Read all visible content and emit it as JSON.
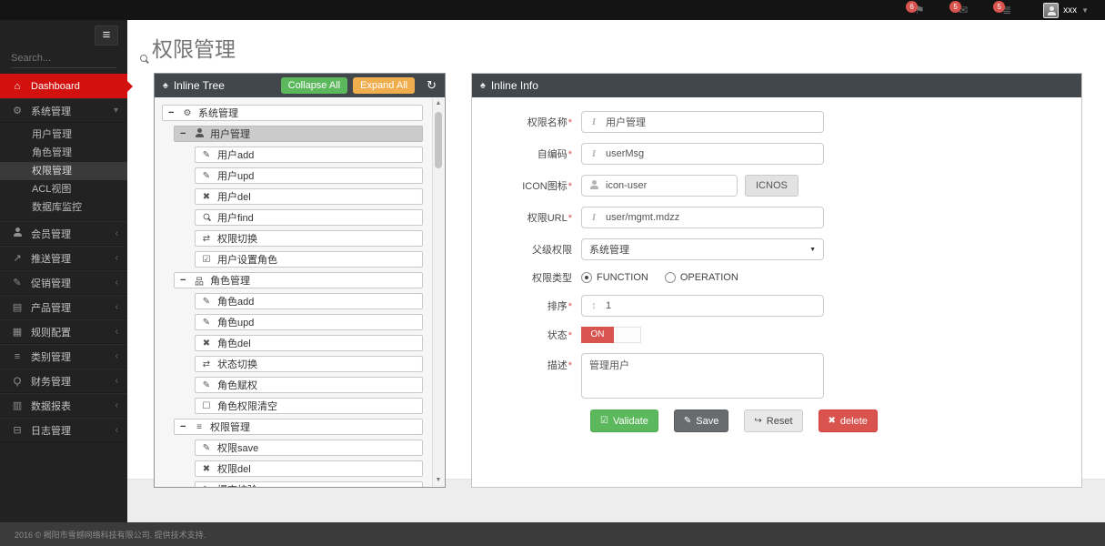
{
  "topbar": {
    "badges": [
      {
        "icon": "flag",
        "count": "6"
      },
      {
        "icon": "envelope",
        "count": "5"
      },
      {
        "icon": "tasks",
        "count": "5"
      }
    ],
    "user": {
      "name": "xxx",
      "avatar_icon": "person"
    }
  },
  "sidebar": {
    "menu_toggle_icon": "hamburger",
    "search_placeholder": "Search...",
    "dashboard": {
      "label": "Dashboard",
      "icon": "home",
      "active": true
    },
    "sections": [
      {
        "label": "系统管理",
        "icon": "cogs",
        "expanded": true,
        "children": [
          {
            "label": "用户管理"
          },
          {
            "label": "角色管理"
          },
          {
            "label": "权限管理",
            "active": true
          },
          {
            "label": "ACL视图"
          },
          {
            "label": "数据库监控"
          }
        ]
      },
      {
        "label": "会员管理",
        "icon": "user"
      },
      {
        "label": "推送管理",
        "icon": "share"
      },
      {
        "label": "促销管理",
        "icon": "pencil"
      },
      {
        "label": "产品管理",
        "icon": "book"
      },
      {
        "label": "规则配置",
        "icon": "newspaper"
      },
      {
        "label": "类别管理",
        "icon": "list"
      },
      {
        "label": "财务管理",
        "icon": "key"
      },
      {
        "label": "数据报表",
        "icon": "chart"
      },
      {
        "label": "日志管理",
        "icon": "hdd"
      }
    ]
  },
  "page": {
    "title": "权限管理"
  },
  "tree_panel": {
    "title": "Inline Tree",
    "title_icon": "tree",
    "collapse_all": "Collapse All",
    "expand_all": "Expand All",
    "refresh_icon": "refresh",
    "nodes": [
      {
        "label": "系统管理",
        "icon": "cogs",
        "level": 0,
        "expandable": true
      },
      {
        "label": "用户管理",
        "icon": "user",
        "level": 1,
        "expandable": true,
        "selected": true
      },
      {
        "label": "用户add",
        "icon": "pencil",
        "level": 2
      },
      {
        "label": "用户upd",
        "icon": "edit",
        "level": 2
      },
      {
        "label": "用户del",
        "icon": "x",
        "level": 2
      },
      {
        "label": "用户find",
        "icon": "search",
        "level": 2
      },
      {
        "label": "权限切换",
        "icon": "retweet",
        "level": 2
      },
      {
        "label": "用户设置角色",
        "icon": "check-square",
        "level": 2
      },
      {
        "label": "角色管理",
        "icon": "sitemap",
        "level": 1,
        "expandable": true
      },
      {
        "label": "角色add",
        "icon": "pencil",
        "level": 2
      },
      {
        "label": "角色upd",
        "icon": "edit",
        "level": 2
      },
      {
        "label": "角色del",
        "icon": "x",
        "level": 2
      },
      {
        "label": "状态切换",
        "icon": "retweet",
        "level": 2
      },
      {
        "label": "角色赋权",
        "icon": "pencil",
        "level": 2
      },
      {
        "label": "角色权限清空",
        "icon": "square",
        "level": 2
      },
      {
        "label": "权限管理",
        "icon": "list",
        "level": 1,
        "expandable": true
      },
      {
        "label": "权限save",
        "icon": "pencil",
        "level": 2
      },
      {
        "label": "权限del",
        "icon": "x",
        "level": 2
      },
      {
        "label": "提交校验",
        "icon": "edit",
        "level": 2
      }
    ]
  },
  "info_panel": {
    "title": "Inline Info",
    "title_icon": "tree",
    "fields": {
      "name": {
        "label": "权限名称",
        "required": "*",
        "value": "用户管理",
        "prefix_icon": "italic-i"
      },
      "code": {
        "label": "自编码",
        "required": "*",
        "value": "userMsg",
        "prefix_icon": "italic-i"
      },
      "icon": {
        "label": "ICON图标",
        "required": "*",
        "value": "icon-user",
        "prefix_icon": "person",
        "button_label": "ICNOS"
      },
      "url": {
        "label": "权限URL",
        "required": "*",
        "value": "user/mgmt.mdzz",
        "prefix_icon": "italic-i"
      },
      "parent": {
        "label": "父级权限",
        "value": "系统管理"
      },
      "type": {
        "label": "权限类型",
        "options": [
          "FUNCTION",
          "OPERATION"
        ],
        "selected": "FUNCTION"
      },
      "sort": {
        "label": "排序",
        "required": "*",
        "value": "1",
        "prefix_icon": "sort"
      },
      "status": {
        "label": "状态",
        "required": "*",
        "value": "ON"
      },
      "desc": {
        "label": "描述",
        "required": "*",
        "value": "管理用户"
      }
    },
    "buttons": {
      "validate": {
        "label": "Validate",
        "icon": "check-square"
      },
      "save": {
        "label": "Save",
        "icon": "pencil"
      },
      "reset": {
        "label": "Reset",
        "icon": "reply"
      },
      "delete": {
        "label": "delete",
        "icon": "x"
      }
    }
  },
  "footer": {
    "copyright": "2016 © 揭阳市雪撼网络科技有限公司. 提供技术支持."
  },
  "colors": {
    "sidebar_active_red": "#d2110e",
    "badge_red": "#d9534f",
    "success_green": "#5cb85c",
    "warning_orange": "#f0ad4e",
    "danger_red": "#d9534f",
    "panel_header": "#42474c"
  }
}
